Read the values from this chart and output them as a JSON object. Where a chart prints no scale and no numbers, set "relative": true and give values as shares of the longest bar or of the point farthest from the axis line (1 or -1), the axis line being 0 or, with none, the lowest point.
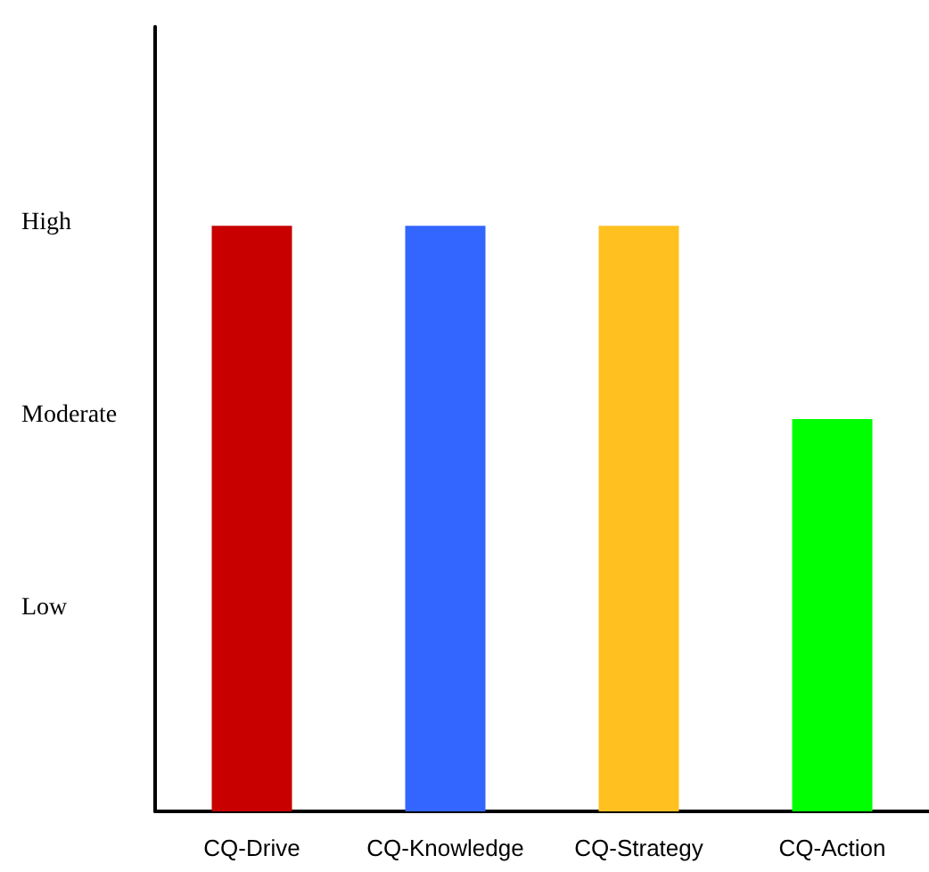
{
  "chart_data": {
    "type": "bar",
    "categories": [
      "CQ-Drive",
      "CQ-Knowledge",
      "CQ-Strategy",
      "CQ-Action"
    ],
    "values": [
      1,
      1,
      1,
      0.67
    ],
    "colors": [
      "#c80000",
      "#3366ff",
      "#ffc020",
      "#00ff00"
    ],
    "relative": true,
    "annotations": [
      "High",
      "Moderate",
      "Low"
    ],
    "grid": false
  }
}
